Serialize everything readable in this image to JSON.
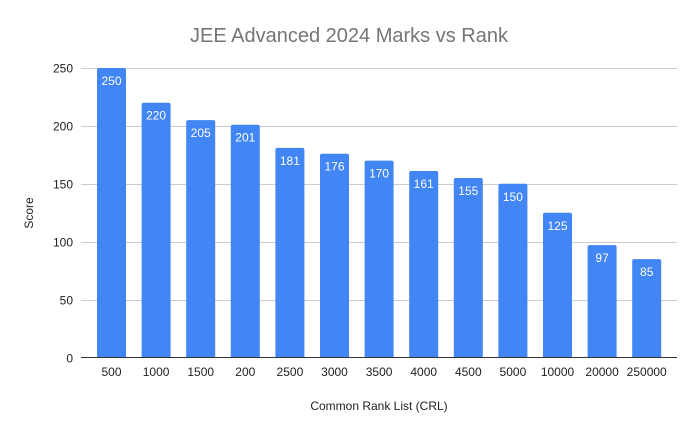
{
  "chart_data": {
    "type": "bar",
    "title": "JEE Advanced 2024 Marks vs Rank",
    "xlabel": "Common Rank List (CRL)",
    "ylabel": "Score",
    "categories": [
      "500",
      "1000",
      "1500",
      "200",
      "2500",
      "3000",
      "3500",
      "4000",
      "4500",
      "5000",
      "10000",
      "20000",
      "250000"
    ],
    "values": [
      250,
      220,
      205,
      201,
      181,
      176,
      170,
      161,
      155,
      150,
      125,
      97,
      85
    ],
    "ylim": [
      0,
      250
    ],
    "yticks": [
      0,
      50,
      100,
      150,
      200,
      250
    ],
    "grid": true,
    "legend": "none",
    "data_labels": true,
    "colors": {
      "bar": "#4285f4",
      "grid": "#cccccc",
      "axis": "#333333",
      "title": "#757575"
    }
  }
}
